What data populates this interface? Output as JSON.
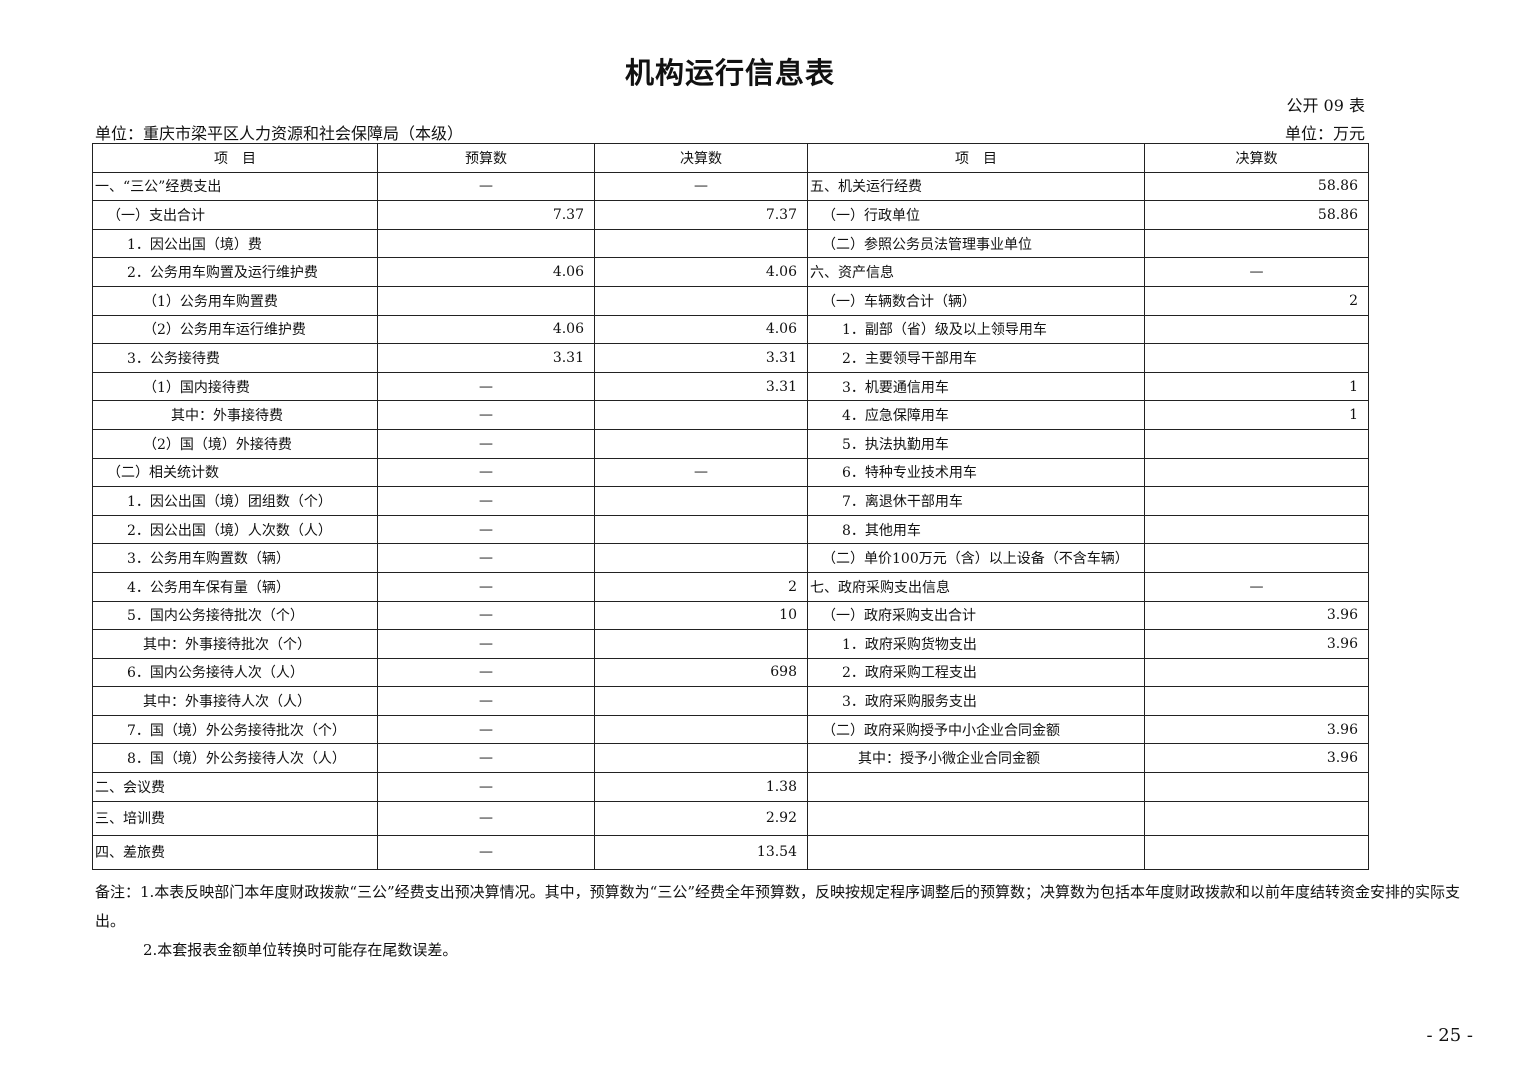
{
  "title": "机构运行信息表",
  "form_no": "公开 09 表",
  "unit_left": "单位：重庆市梁平区人力资源和社会保障局（本级）",
  "unit_right": "单位：万元",
  "headers": [
    "项　目",
    "预算数",
    "决算数",
    "项　目",
    "决算数"
  ],
  "rows": [
    [
      "一、“三公”经费支出",
      0,
      "—",
      "—",
      "五、机关运行经费",
      0,
      "58.86"
    ],
    [
      "（一）支出合计",
      1,
      "7.37",
      "7.37",
      "（一）行政单位",
      1,
      "58.86"
    ],
    [
      "1．因公出国（境）费",
      2,
      "",
      "",
      "（二）参照公务员法管理事业单位",
      1,
      ""
    ],
    [
      "2．公务用车购置及运行维护费",
      2,
      "4.06",
      "4.06",
      "六、资产信息",
      0,
      "—"
    ],
    [
      "（1）公务用车购置费",
      3,
      "",
      "",
      "（一）车辆数合计（辆）",
      1,
      "2"
    ],
    [
      "（2）公务用车运行维护费",
      3,
      "4.06",
      "4.06",
      "1．副部（省）级及以上领导用车",
      2,
      ""
    ],
    [
      "3．公务接待费",
      2,
      "3.31",
      "3.31",
      "2．主要领导干部用车",
      2,
      ""
    ],
    [
      "（1）国内接待费",
      3,
      "—",
      "3.31",
      "3．机要通信用车",
      2,
      "1"
    ],
    [
      "其中：外事接待费",
      4,
      "—",
      "",
      "4．应急保障用车",
      2,
      "1"
    ],
    [
      "（2）国（境）外接待费",
      3,
      "—",
      "",
      "5．执法执勤用车",
      2,
      ""
    ],
    [
      "（二）相关统计数",
      1,
      "—",
      "—",
      "6．特种专业技术用车",
      2,
      ""
    ],
    [
      "1．因公出国（境）团组数（个）",
      2,
      "—",
      "",
      "7．离退休干部用车",
      2,
      ""
    ],
    [
      "2．因公出国（境）人次数（人）",
      2,
      "—",
      "",
      "8．其他用车",
      2,
      ""
    ],
    [
      "3．公务用车购置数（辆）",
      2,
      "—",
      "",
      "（二）单价100万元（含）以上设备（不含车辆）",
      1,
      ""
    ],
    [
      "4．公务用车保有量（辆）",
      2,
      "—",
      "2",
      "七、政府采购支出信息",
      0,
      "—"
    ],
    [
      "5．国内公务接待批次（个）",
      2,
      "—",
      "10",
      "（一）政府采购支出合计",
      1,
      "3.96"
    ],
    [
      "其中：外事接待批次（个）",
      3,
      "—",
      "",
      "1．政府采购货物支出",
      2,
      "3.96"
    ],
    [
      "6．国内公务接待人次（人）",
      2,
      "—",
      "698",
      "2．政府采购工程支出",
      2,
      ""
    ],
    [
      "其中：外事接待人次（人）",
      3,
      "—",
      "",
      "3．政府采购服务支出",
      2,
      ""
    ],
    [
      "7．国（境）外公务接待批次（个）",
      2,
      "—",
      "",
      "（二）政府采购授予中小企业合同金额",
      1,
      "3.96"
    ],
    [
      "8．国（境）外公务接待人次（人）",
      2,
      "—",
      "",
      "其中：授予小微企业合同金额",
      3,
      "3.96"
    ],
    [
      "二、会议费",
      0,
      "—",
      "1.38",
      "",
      0,
      ""
    ],
    [
      "三、培训费",
      0,
      "—",
      "2.92",
      "",
      0,
      ""
    ],
    [
      "四、差旅费",
      0,
      "—",
      "13.54",
      "",
      0,
      ""
    ]
  ],
  "notes": [
    "备注：1.本表反映部门本年度财政拨款“三公”经费支出预决算情况。其中，预算数为“三公”经费全年预算数，反映按规定程序调整后的预算数；决算数为包括本年度财政拨款和以前年度结转资金安排的实际支出。",
    "2.本套报表金额单位转换时可能存在尾数误差。"
  ],
  "page_number": "- 25 -"
}
